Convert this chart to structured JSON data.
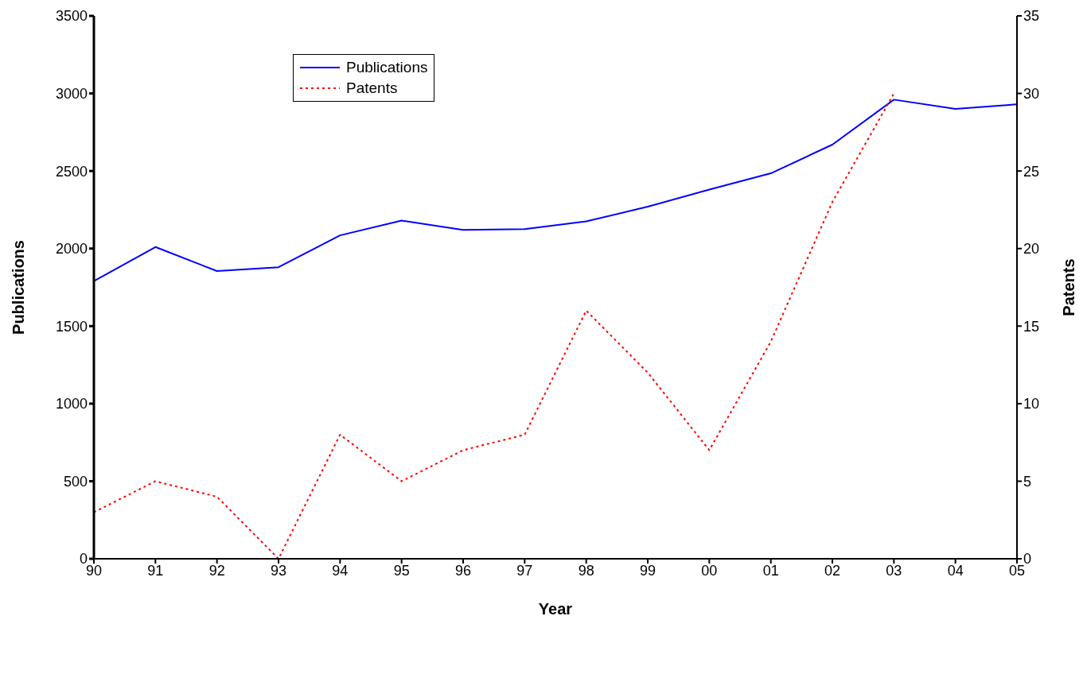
{
  "chart_data": {
    "type": "line",
    "xlabel": "Year",
    "ylabel": "Publications",
    "y2label": "Patents",
    "categories": [
      "90",
      "91",
      "92",
      "93",
      "94",
      "95",
      "96",
      "97",
      "98",
      "99",
      "00",
      "01",
      "02",
      "03",
      "04",
      "05"
    ],
    "series": [
      {
        "name": "Publications",
        "color": "#0000ff",
        "line_style": "solid",
        "values": [
          1790,
          2010,
          1855,
          1880,
          2085,
          2180,
          2120,
          2125,
          2175,
          2270,
          2380,
          2485,
          2670,
          2960,
          2900,
          2930
        ]
      },
      {
        "name": "Patents",
        "color": "#ff0000",
        "line_style": "dotted",
        "axis": "y2",
        "values": [
          3,
          5,
          4,
          0,
          8,
          5,
          7,
          8,
          16,
          12,
          7,
          14,
          23,
          30,
          null,
          null
        ]
      }
    ],
    "ylim": [
      0,
      3500
    ],
    "yticks": [
      0,
      500,
      1000,
      1500,
      2000,
      2500,
      3000,
      3500
    ],
    "y2lim": [
      0,
      35
    ],
    "y2ticks": [
      0,
      5,
      10,
      15,
      20,
      25,
      30,
      35
    ],
    "grid": false,
    "legend": "top left",
    "marker": "none"
  }
}
